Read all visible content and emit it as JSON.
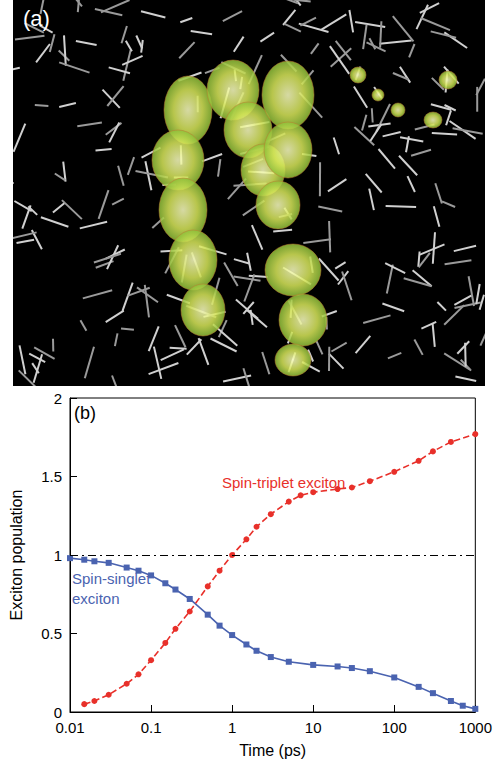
{
  "figure_a": {
    "label": "(a)"
  },
  "chart_data": {
    "type": "line",
    "panel_label": "(b)",
    "x_label": "Time (ps)",
    "y_label": "Exciton population",
    "log": "x",
    "xlim": [
      0.01,
      1000
    ],
    "xticks": [
      0.01,
      0.1,
      1,
      10,
      100,
      1000
    ],
    "ylim": [
      0,
      2
    ],
    "yticks": [
      0,
      0.5,
      1,
      1.5,
      2
    ],
    "grid": false,
    "reference_lines": [
      {
        "y": 1,
        "color": "#000000",
        "line_style": "dashdot"
      }
    ],
    "series": [
      {
        "name": "Spin-singlet exciton",
        "color": "#4a63b0",
        "marker": "square",
        "line_style": "solid",
        "x": [
          0.01,
          0.015,
          0.02,
          0.03,
          0.05,
          0.07,
          0.1,
          0.15,
          0.2,
          0.3,
          0.5,
          0.7,
          1,
          1.5,
          2,
          3,
          5,
          10,
          20,
          30,
          50,
          100,
          200,
          300,
          500,
          700,
          1000
        ],
        "values": [
          0.98,
          0.97,
          0.96,
          0.95,
          0.92,
          0.9,
          0.87,
          0.82,
          0.78,
          0.72,
          0.62,
          0.55,
          0.49,
          0.43,
          0.39,
          0.35,
          0.32,
          0.3,
          0.29,
          0.28,
          0.26,
          0.22,
          0.16,
          0.12,
          0.07,
          0.04,
          0.02
        ]
      },
      {
        "name": "Spin-triplet exciton",
        "color": "#e8302a",
        "marker": "circle",
        "line_style": "dashed",
        "x": [
          0.015,
          0.02,
          0.03,
          0.05,
          0.07,
          0.1,
          0.15,
          0.2,
          0.3,
          0.5,
          0.7,
          1,
          1.5,
          2,
          3,
          5,
          7,
          10,
          20,
          30,
          50,
          100,
          200,
          300,
          500,
          1000
        ],
        "values": [
          0.05,
          0.07,
          0.11,
          0.18,
          0.24,
          0.33,
          0.44,
          0.53,
          0.64,
          0.8,
          0.9,
          1.0,
          1.1,
          1.18,
          1.26,
          1.34,
          1.38,
          1.4,
          1.42,
          1.43,
          1.47,
          1.53,
          1.6,
          1.66,
          1.72,
          1.77
        ]
      }
    ]
  }
}
